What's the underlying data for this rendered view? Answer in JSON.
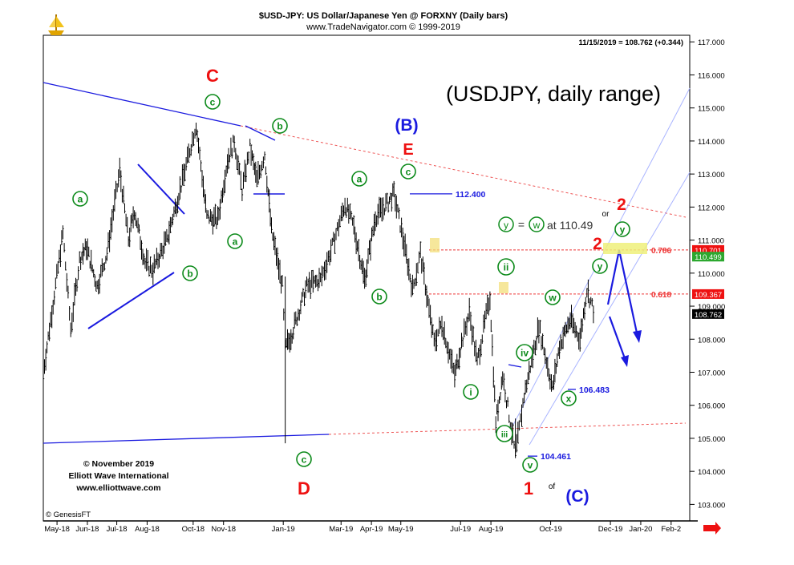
{
  "header": {
    "title": "$USD-JPY:  US Dollar/Japanese Yen @ FORXNY  (Daily bars)",
    "subtitle": "www.TradeNavigator.com © 1999-2019",
    "last_quote": "11/15/2019 = 108.762 (+0.344)"
  },
  "chart_data": {
    "type": "bar",
    "title": "(USDJPY, daily range)",
    "ylim": [
      102.5,
      117.2
    ],
    "y_ticks": [
      "117.000",
      "116.000",
      "115.000",
      "114.000",
      "113.000",
      "112.000",
      "111.000",
      "110.000",
      "109.000",
      "108.000",
      "107.000",
      "106.000",
      "105.000",
      "104.000",
      "103.000"
    ],
    "x_ticks": [
      "May-18",
      "Jun-18",
      "Jul-18",
      "Aug-18",
      "Oct-18",
      "Nov-18",
      "Jan-19",
      "Mar-19",
      "Apr-19",
      "May-19",
      "Jul-19",
      "Aug-19",
      "Oct-19",
      "Dec-19",
      "Jan-20",
      "Feb-2"
    ],
    "price_path": [
      [
        "2018-05-01",
        107.0
      ],
      [
        "2018-05-21",
        111.2
      ],
      [
        "2018-05-29",
        108.3
      ],
      [
        "2018-06-07",
        110.4
      ],
      [
        "2018-06-14",
        110.8
      ],
      [
        "2018-06-25",
        109.6
      ],
      [
        "2018-07-05",
        110.6
      ],
      [
        "2018-07-18",
        113.1
      ],
      [
        "2018-07-27",
        111.0
      ],
      [
        "2018-08-02",
        111.9
      ],
      [
        "2018-08-13",
        110.3
      ],
      [
        "2018-08-21",
        110.1
      ],
      [
        "2018-09-04",
        111.0
      ],
      [
        "2018-09-20",
        112.8
      ],
      [
        "2018-10-04",
        114.5
      ],
      [
        "2018-10-15",
        111.7
      ],
      [
        "2018-10-26",
        111.6
      ],
      [
        "2018-11-05",
        113.4
      ],
      [
        "2018-11-12",
        114.0
      ],
      [
        "2018-11-20",
        112.5
      ],
      [
        "2018-11-28",
        113.8
      ],
      [
        "2018-12-05",
        112.8
      ],
      [
        "2018-12-13",
        113.6
      ],
      [
        "2018-12-20",
        111.3
      ],
      [
        "2018-12-31",
        109.6
      ],
      [
        "2019-01-03",
        107.7
      ],
      [
        "2019-01-10",
        108.2
      ],
      [
        "2019-01-25",
        109.6
      ],
      [
        "2019-02-08",
        109.8
      ],
      [
        "2019-02-20",
        110.8
      ],
      [
        "2019-03-05",
        112.1
      ],
      [
        "2019-03-14",
        111.4
      ],
      [
        "2019-03-25",
        109.8
      ],
      [
        "2019-04-05",
        111.7
      ],
      [
        "2019-04-17",
        112.1
      ],
      [
        "2019-04-24",
        112.4
      ],
      [
        "2019-05-03",
        111.1
      ],
      [
        "2019-05-13",
        109.5
      ],
      [
        "2019-05-21",
        110.6
      ],
      [
        "2019-06-04",
        107.9
      ],
      [
        "2019-06-12",
        108.5
      ],
      [
        "2019-06-25",
        106.9
      ],
      [
        "2019-07-02",
        107.9
      ],
      [
        "2019-07-10",
        108.8
      ],
      [
        "2019-07-18",
        107.3
      ],
      [
        "2019-07-31",
        109.3
      ],
      [
        "2019-08-06",
        105.5
      ],
      [
        "2019-08-13",
        106.9
      ],
      [
        "2019-08-26",
        104.5
      ],
      [
        "2019-09-04",
        106.3
      ],
      [
        "2019-09-19",
        108.4
      ],
      [
        "2019-10-03",
        106.5
      ],
      [
        "2019-10-10",
        107.8
      ],
      [
        "2019-10-21",
        108.6
      ],
      [
        "2019-10-31",
        108.0
      ],
      [
        "2019-11-07",
        109.5
      ],
      [
        "2019-11-15",
        108.762
      ]
    ],
    "price_levels": [
      {
        "label": "112.400",
        "value": 112.4
      },
      {
        "label": "106.483",
        "value": 106.483
      },
      {
        "label": "104.461",
        "value": 104.461
      }
    ],
    "retracements": [
      {
        "label": "0.786",
        "value": 110.701,
        "box": "110.701"
      },
      {
        "label": "0.618",
        "value": 109.367,
        "box": "109.367"
      }
    ],
    "target_box": "110.499",
    "current_box": "108.762",
    "target_text": "at  110.49",
    "target_circle_left": "y",
    "target_circle_right": "w",
    "target_eq": "=",
    "wave_labels": {
      "red": [
        "C",
        "E",
        "D",
        "1",
        "2",
        "2"
      ],
      "blue": [
        "(B)",
        "(C)"
      ],
      "of": "of",
      "or": "or",
      "green": [
        "a",
        "b",
        "c",
        "b",
        "a",
        "b",
        "c",
        "a",
        "b",
        "c",
        "ii",
        "i",
        "iii",
        "iv",
        "v",
        "w",
        "x",
        "y",
        "y"
      ]
    },
    "colors": {
      "red": "#ee1111",
      "blue": "#1a1adf",
      "green": "#0c8a1a",
      "bars": "#000000",
      "fib": "#ee3333",
      "channel": "#9aa7ff"
    }
  },
  "footer": {
    "copyright": "© November 2019",
    "org": "Elliott Wave International",
    "site": "www.elliottwave.com",
    "vendor": "© GenesisFT"
  },
  "logo_icon": "ship-icon"
}
